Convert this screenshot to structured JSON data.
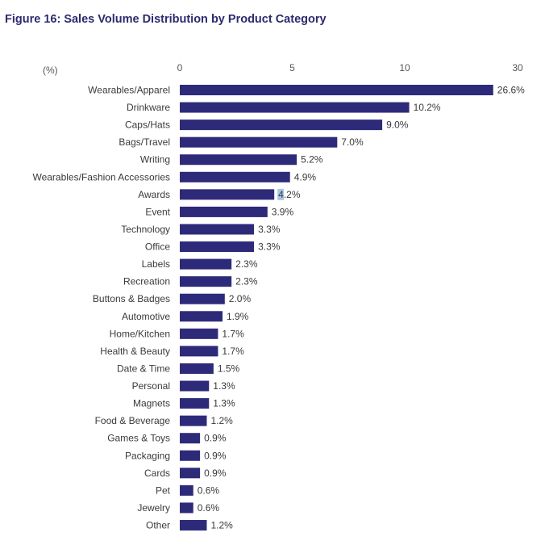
{
  "figure": {
    "title": "Figure 16: Sales Volume Distribution by Product Category"
  },
  "colors": {
    "bar": "#2e2a7a",
    "title": "#2e2a6e",
    "text": "#3a3a3a",
    "highlight": "#a9c8e8"
  },
  "chart_data": {
    "type": "bar",
    "orientation": "horizontal",
    "title": "Figure 16: Sales Volume Distribution by Product Category",
    "unit_label": "(%)",
    "x_ticks": [
      "0",
      "5",
      "10",
      "30"
    ],
    "axis_scale": "broken: 0–10 linear, break, 30 at right end",
    "grid": false,
    "legend": "none",
    "categories": [
      "Wearables/Apparel",
      "Drinkware",
      "Caps/Hats",
      "Bags/Travel",
      "Writing",
      "Wearables/Fashion Accessories",
      "Awards",
      "Event",
      "Technology",
      "Office",
      "Labels",
      "Recreation",
      "Buttons & Badges",
      "Automotive",
      "Home/Kitchen",
      "Health & Beauty",
      "Date & Time",
      "Personal",
      "Magnets",
      "Food & Beverage",
      "Games & Toys",
      "Packaging",
      "Cards",
      "Pet",
      "Jewelry",
      "Other"
    ],
    "values": [
      26.6,
      10.2,
      9.0,
      7.0,
      5.2,
      4.9,
      4.2,
      3.9,
      3.3,
      3.3,
      2.3,
      2.3,
      2.0,
      1.9,
      1.7,
      1.7,
      1.5,
      1.3,
      1.3,
      1.2,
      0.9,
      0.9,
      0.9,
      0.6,
      0.6,
      1.2
    ],
    "value_labels": [
      "26.6%",
      "10.2%",
      "9.0%",
      "7.0%",
      "5.2%",
      "4.9%",
      "4.2%",
      "3.9%",
      "3.3%",
      "3.3%",
      "2.3%",
      "2.3%",
      "2.0%",
      "1.9%",
      "1.7%",
      "1.7%",
      "1.5%",
      "1.3%",
      "1.3%",
      "1.2%",
      "0.9%",
      "0.9%",
      "0.9%",
      "0.6%",
      "0.6%",
      "1.2%"
    ]
  }
}
